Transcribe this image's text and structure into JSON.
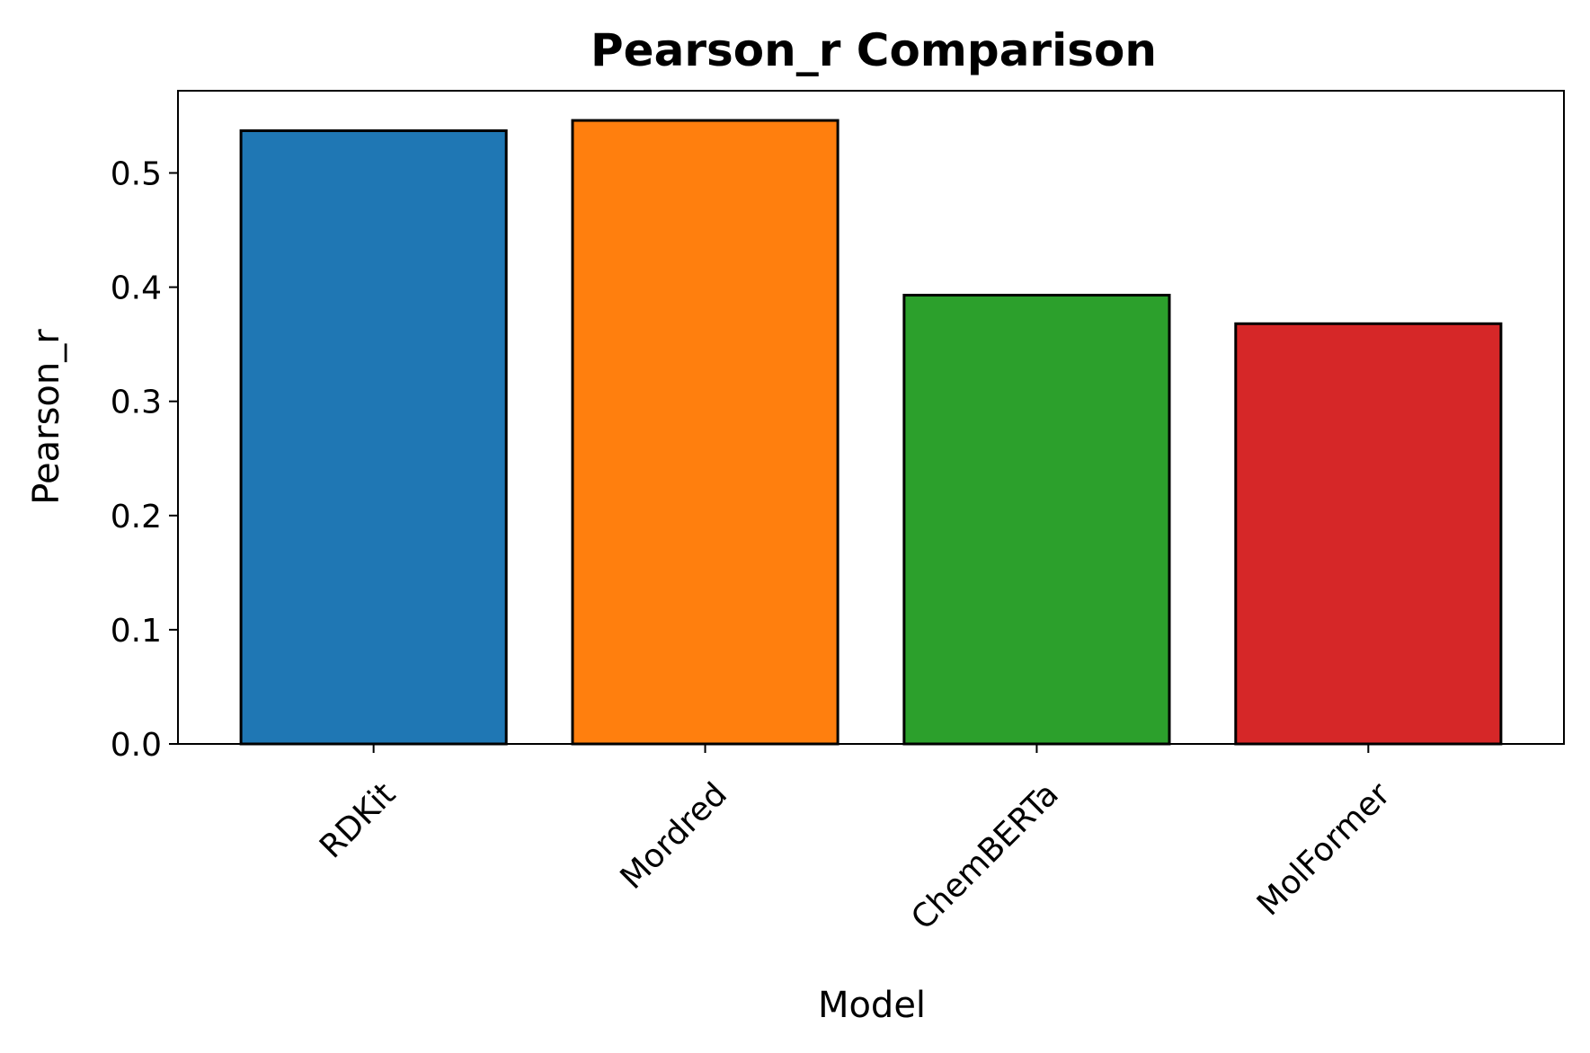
{
  "chart_data": {
    "type": "bar",
    "title": "Pearson_r Comparison",
    "xlabel": "Model",
    "ylabel": "Pearson_r",
    "categories": [
      "RDKit",
      "Mordred",
      "ChemBERTa",
      "MolFormer"
    ],
    "values": [
      0.537,
      0.546,
      0.393,
      0.368
    ],
    "colors": [
      "#1f77b4",
      "#ff7f0e",
      "#2ca02c",
      "#d62728"
    ],
    "edge_color": "#000000",
    "ylim": [
      0,
      0.572
    ],
    "yticks": [
      0.0,
      0.1,
      0.2,
      0.3,
      0.4,
      0.5
    ],
    "ytick_labels": [
      "0.0",
      "0.1",
      "0.2",
      "0.3",
      "0.4",
      "0.5"
    ],
    "grid": false,
    "legend": false
  }
}
